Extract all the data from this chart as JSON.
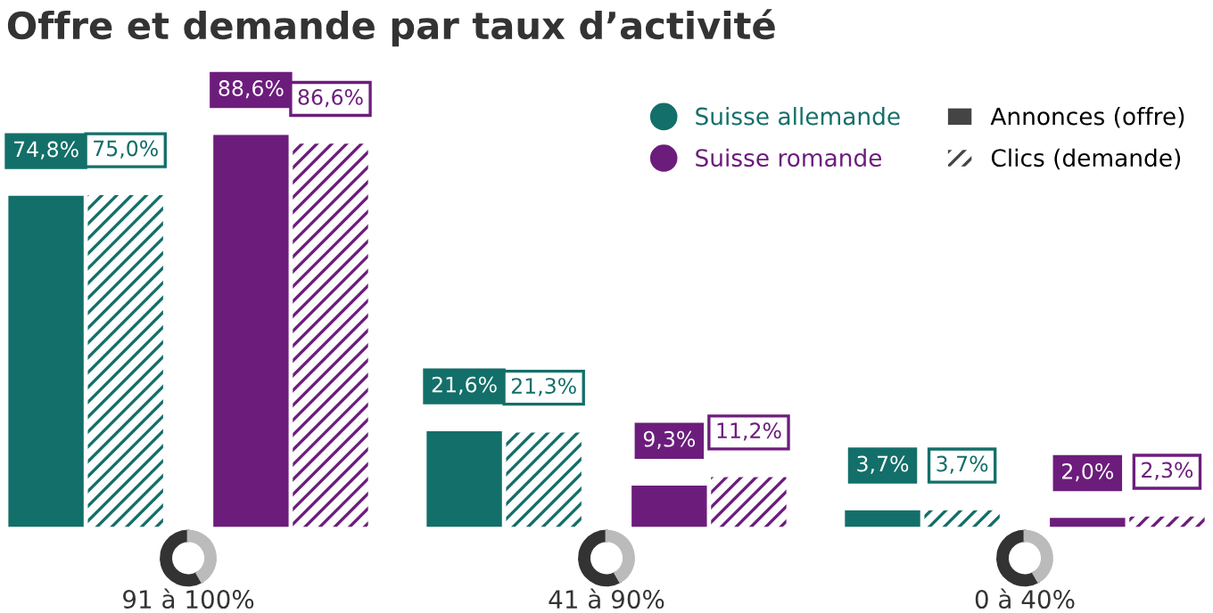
{
  "chart_data": {
    "type": "bar",
    "title": "Offre et demande par taux d’activité",
    "categories": [
      "91 à 100%",
      "41 à 90%",
      "0 à 40%"
    ],
    "series": [
      {
        "name": "Suisse allemande",
        "color": "#136f69",
        "values": [
          74.8,
          21.6,
          3.7
        ],
        "value_labels": [
          "74,8%",
          "21,6%",
          "3,7%"
        ]
      },
      {
        "color": "#136f69",
        "values": [
          75.0,
          21.3,
          3.7
        ],
        "value_labels": [
          "75,0%",
          "21,3%",
          "3,7%"
        ]
      },
      {
        "name": "Suisse romande",
        "color": "#6c1d7c",
        "values": [
          88.6,
          9.3,
          2.0
        ],
        "value_labels": [
          "88,6%",
          "9,3%",
          "2,0%"
        ]
      },
      {
        "color": "#6c1d7c",
        "values": [
          86.6,
          11.2,
          2.3
        ],
        "value_labels": [
          "86,6%",
          "11,2%",
          "2,3%"
        ]
      }
    ],
    "annotations": [
      "Annonces (offre)",
      "Clics (demande)"
    ],
    "legend": "top right"
  }
}
